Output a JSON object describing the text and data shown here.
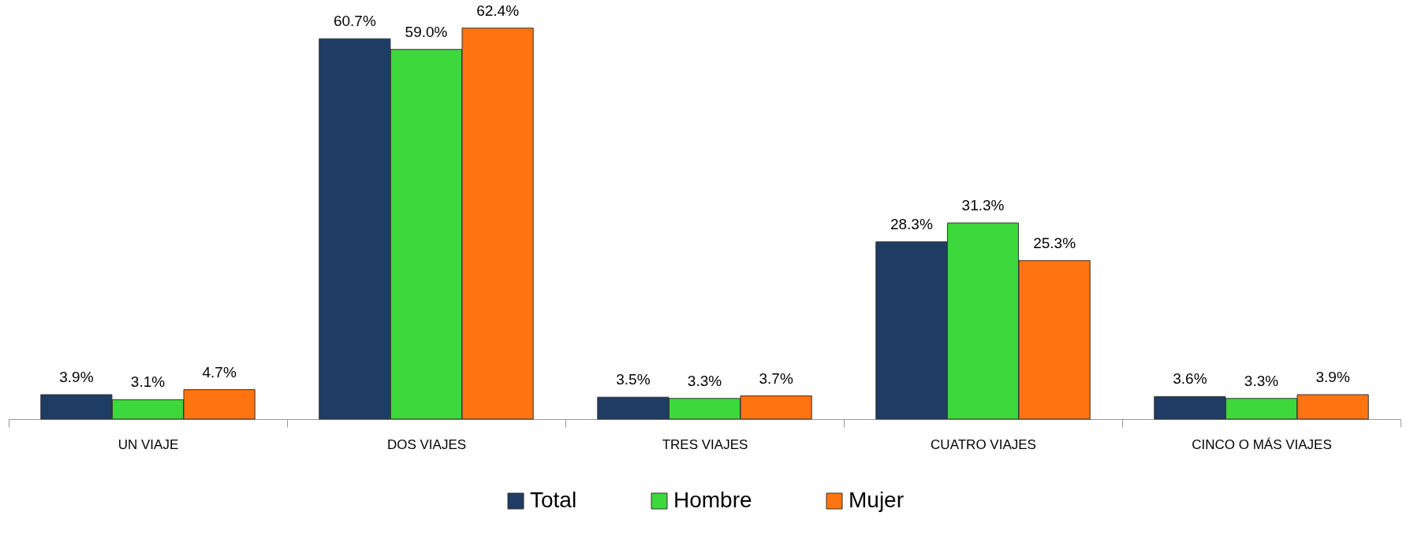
{
  "chart_data": {
    "type": "bar",
    "categories": [
      "UN VIAJE",
      "DOS VIAJES",
      "TRES VIAJES",
      "CUATRO VIAJES",
      "CINCO O MÁS VIAJES"
    ],
    "series": [
      {
        "name": "Total",
        "color": "#1f3c64",
        "values": [
          3.9,
          60.7,
          3.5,
          28.3,
          3.6
        ],
        "value_labels": [
          "3.9%",
          "60.7%",
          "3.5%",
          "28.3%",
          "3.6%"
        ]
      },
      {
        "name": "Hombre",
        "color": "#3cd83c",
        "values": [
          3.1,
          59.0,
          3.3,
          31.3,
          3.3
        ],
        "value_labels": [
          "3.1%",
          "59.0%",
          "3.3%",
          "31.3%",
          "3.3%"
        ]
      },
      {
        "name": "Mujer",
        "color": "#ff7410",
        "values": [
          4.7,
          62.4,
          3.7,
          25.3,
          3.9
        ],
        "value_labels": [
          "4.7%",
          "62.4%",
          "3.7%",
          "25.3%",
          "3.9%"
        ]
      }
    ],
    "legend": "bottom",
    "grid": false
  }
}
